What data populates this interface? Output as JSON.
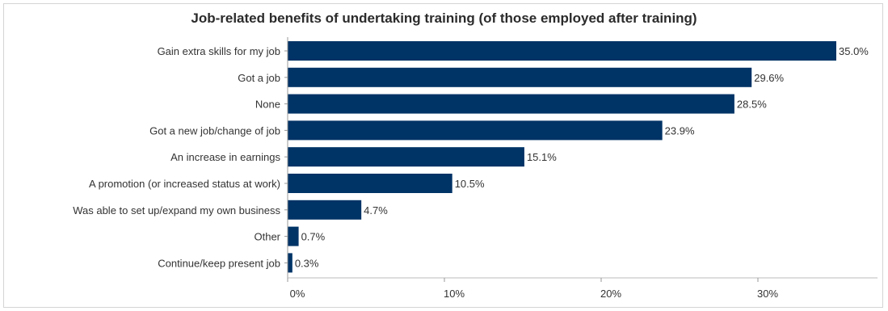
{
  "chart_data": {
    "type": "bar",
    "orientation": "horizontal",
    "title": "Job-related benefits of undertaking training (of those employed after training)",
    "categories": [
      "Gain extra skills for my job",
      "Got a job",
      "None",
      "Got a new job/change of job",
      "An increase in earnings",
      "A promotion (or increased status at work)",
      "Was able to set up/expand my own business",
      "Other",
      "Continue/keep present job"
    ],
    "values": [
      35.0,
      29.6,
      28.5,
      23.9,
      15.1,
      10.5,
      4.7,
      0.7,
      0.3
    ],
    "value_labels": [
      "35.0%",
      "29.6%",
      "28.5%",
      "23.9%",
      "15.1%",
      "10.5%",
      "4.7%",
      "0.7%",
      "0.3%"
    ],
    "xticks": [
      0,
      10,
      20,
      30
    ],
    "xtick_labels": [
      "0%",
      "10%",
      "20%",
      "30%"
    ],
    "xlim": [
      0,
      37
    ],
    "xlabel": "",
    "ylabel": "",
    "grid": false,
    "bar_color": "#003366"
  }
}
